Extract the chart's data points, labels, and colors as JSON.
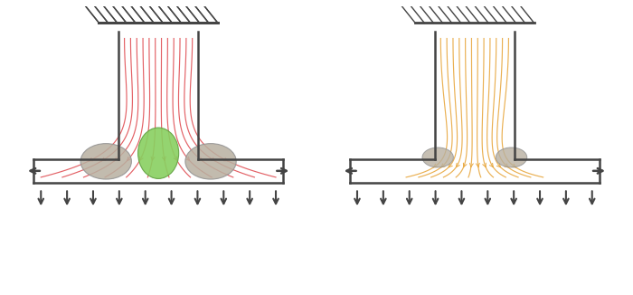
{
  "fig_width": 7.0,
  "fig_height": 3.26,
  "dpi": 100,
  "bg_color": "#ffffff",
  "color_left_lines": "#e05055",
  "color_right_lines": "#e8a840",
  "color_structure": "#444444",
  "color_arrow": "#444444",
  "color_weld_gray": "#b8b0a0",
  "color_weld_green": "#88d060",
  "n_flow_lines": 12
}
